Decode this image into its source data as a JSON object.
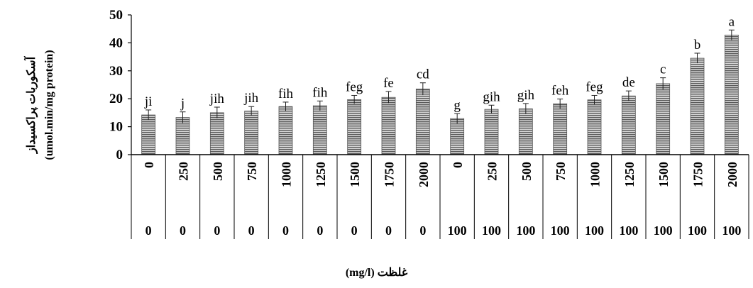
{
  "chart_data": {
    "type": "bar",
    "categories": [
      {
        "top": "0",
        "bottom": "0"
      },
      {
        "top": "250",
        "bottom": "0"
      },
      {
        "top": "500",
        "bottom": "0"
      },
      {
        "top": "750",
        "bottom": "0"
      },
      {
        "top": "1000",
        "bottom": "0"
      },
      {
        "top": "1250",
        "bottom": "0"
      },
      {
        "top": "1500",
        "bottom": "0"
      },
      {
        "top": "1750",
        "bottom": "0"
      },
      {
        "top": "2000",
        "bottom": "0"
      },
      {
        "top": "0",
        "bottom": "100"
      },
      {
        "top": "250",
        "bottom": "100"
      },
      {
        "top": "500",
        "bottom": "100"
      },
      {
        "top": "750",
        "bottom": "100"
      },
      {
        "top": "1000",
        "bottom": "100"
      },
      {
        "top": "1250",
        "bottom": "100"
      },
      {
        "top": "1500",
        "bottom": "100"
      },
      {
        "top": "1750",
        "bottom": "100"
      },
      {
        "top": "2000",
        "bottom": "100"
      }
    ],
    "values": [
      14.2,
      13.3,
      15.0,
      15.6,
      17.2,
      17.5,
      19.7,
      20.5,
      23.5,
      12.9,
      16.2,
      16.4,
      18.2,
      19.6,
      21.0,
      25.4,
      34.5,
      42.8
    ],
    "errors": [
      1.8,
      2.0,
      2.0,
      1.6,
      1.6,
      1.7,
      1.5,
      2.1,
      2.2,
      1.8,
      1.5,
      1.9,
      1.7,
      1.6,
      1.8,
      2.1,
      1.8,
      1.8
    ],
    "letters": [
      "ji",
      "j",
      "jih",
      "jih",
      "fih",
      "fih",
      "feg",
      "fe",
      "cd",
      "g",
      "gih",
      "gih",
      "feh",
      "feg",
      "de",
      "c",
      "b",
      "a"
    ],
    "yticks": [
      "0",
      "10",
      "20",
      "30",
      "40",
      "50"
    ],
    "ylim": [
      0,
      50
    ],
    "ylabel_fa": "آسکوربات پراکسیداز",
    "ylabel_en": "(umol.min/mg protein)",
    "xlabel": "غلظت (mg/l)",
    "bar_fill": "#9a9a9a",
    "bar_stroke": "#555555",
    "grid": false,
    "legend": "none"
  }
}
